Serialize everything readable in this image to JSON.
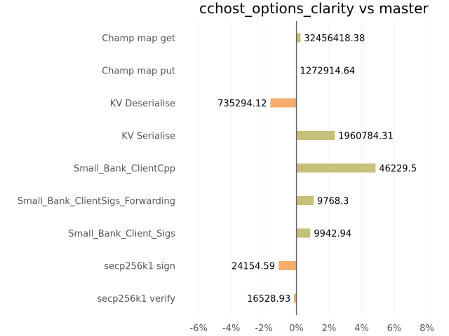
{
  "chart_data": {
    "type": "bar",
    "orientation": "horizontal",
    "title": "cchost_options_clarity vs master",
    "xlabel": "",
    "ylabel": "",
    "xlim": [
      -7,
      8.5
    ],
    "x_ticks": [
      -6,
      -4,
      -2,
      0,
      2,
      4,
      6,
      8
    ],
    "x_tick_labels": [
      "-6%",
      "-4%",
      "-2%",
      "0%",
      "2%",
      "4%",
      "6%",
      "8%"
    ],
    "grid": "vertical",
    "categories": [
      "Champ map get",
      "Champ map put",
      "KV Deserialise",
      "KV Serialise",
      "Small_Bank_ClientCpp",
      "Small_Bank_ClientSigs_Forwarding",
      "Small_Bank_Client_Sigs",
      "secp256k1 sign",
      "secp256k1 verify"
    ],
    "values": [
      0.25,
      0.0,
      -1.6,
      2.35,
      4.85,
      1.05,
      0.85,
      -1.1,
      -0.15
    ],
    "value_labels": [
      "32456418.38",
      "1272914.64",
      "735294.12",
      "1960784.31",
      "46229.5",
      "9768.3",
      "9942.94",
      "24154.59",
      "16528.93"
    ],
    "colors": {
      "positive": "#c5c07a",
      "negative": "#f5ad6e",
      "zero_line": "#666666",
      "grid": "#f0f0f0",
      "label": "#555555"
    }
  }
}
